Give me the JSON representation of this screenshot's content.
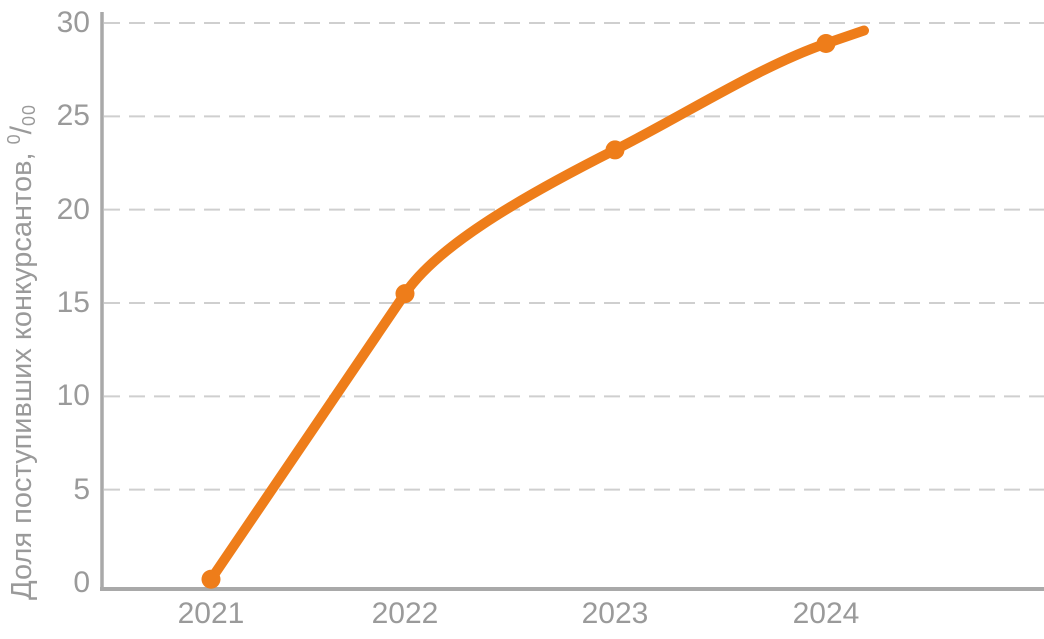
{
  "chart_data": {
    "type": "line",
    "title": "",
    "x": [
      2021,
      2022,
      2023,
      2024
    ],
    "values": [
      0.2,
      15.5,
      23.2,
      28.9
    ],
    "extension": {
      "x": 2024.2,
      "value": 29.6
    },
    "x_ticks": [
      "2021",
      "2022",
      "2023",
      "2024"
    ],
    "y_ticks": [
      0,
      5,
      10,
      15,
      20,
      25,
      30
    ],
    "ylim": [
      0,
      30
    ],
    "xlabel": "",
    "ylabel": "Доля поступивших конкурсантов, ⁰/₀₀",
    "ylabel_parts": {
      "main": "Доля поступивших конкурсантов, ",
      "sup": "0",
      "slash": "/",
      "sub": "00"
    },
    "legend": "none",
    "grid": {
      "horizontal": true,
      "vertical": false,
      "style": "dashed"
    },
    "colors": {
      "line": "#ee7d1a",
      "marker": "#ee7d1a",
      "axis": "#a9a9a9",
      "gridline": "#cfcfcf",
      "tick_text": "#9a9a9a"
    }
  }
}
